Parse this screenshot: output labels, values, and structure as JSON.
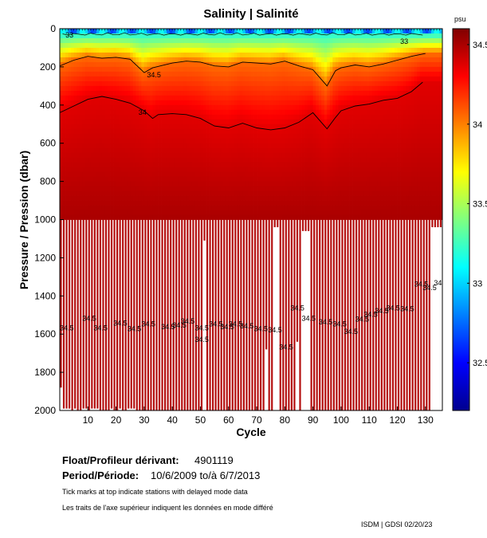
{
  "chart_data": {
    "type": "heatmap",
    "title": "Salinity | Salinité",
    "xlabel": "Cycle",
    "ylabel": "Pressure / Pression (dbar)",
    "xlim": [
      0,
      136
    ],
    "ylim": [
      2000,
      0
    ],
    "x_ticks": [
      10,
      20,
      30,
      40,
      50,
      60,
      70,
      80,
      90,
      100,
      110,
      120,
      130
    ],
    "y_ticks": [
      0,
      200,
      400,
      600,
      800,
      1000,
      1200,
      1400,
      1600,
      1800,
      2000
    ],
    "colorbar": {
      "unit": "psu",
      "range": [
        32.2,
        34.6
      ],
      "ticks": [
        32.5,
        33,
        33.5,
        34,
        34.5
      ],
      "tick_labels": [
        "32.5",
        "33",
        "33.5",
        "34",
        "34.5"
      ],
      "colormap": "jet"
    },
    "contour_labels": {
      "upper_left": "33",
      "upper_right": "33",
      "mid": "34.5",
      "deep": "34",
      "repeated": "34.5"
    },
    "contours": [
      {
        "level": 34.5,
        "depth_by_cycle": [
          [
            0,
            195
          ],
          [
            5,
            165
          ],
          [
            10,
            145
          ],
          [
            15,
            155
          ],
          [
            20,
            150
          ],
          [
            25,
            160
          ],
          [
            30,
            230
          ],
          [
            33,
            205
          ],
          [
            40,
            180
          ],
          [
            45,
            170
          ],
          [
            50,
            175
          ],
          [
            55,
            195
          ],
          [
            60,
            200
          ],
          [
            65,
            175
          ],
          [
            70,
            180
          ],
          [
            75,
            185
          ],
          [
            80,
            170
          ],
          [
            85,
            195
          ],
          [
            90,
            215
          ],
          [
            95,
            300
          ],
          [
            98,
            220
          ],
          [
            100,
            205
          ],
          [
            105,
            190
          ],
          [
            110,
            200
          ],
          [
            115,
            185
          ],
          [
            120,
            165
          ],
          [
            125,
            145
          ],
          [
            130,
            130
          ]
        ]
      },
      {
        "level": 34.0,
        "depth_by_cycle": [
          [
            0,
            440
          ],
          [
            5,
            405
          ],
          [
            10,
            370
          ],
          [
            15,
            355
          ],
          [
            20,
            370
          ],
          [
            25,
            390
          ],
          [
            30,
            430
          ],
          [
            33,
            470
          ],
          [
            35,
            450
          ],
          [
            40,
            445
          ],
          [
            45,
            450
          ],
          [
            50,
            470
          ],
          [
            55,
            510
          ],
          [
            60,
            520
          ],
          [
            65,
            495
          ],
          [
            70,
            520
          ],
          [
            75,
            530
          ],
          [
            80,
            520
          ],
          [
            85,
            490
          ],
          [
            90,
            440
          ],
          [
            95,
            525
          ],
          [
            98,
            465
          ],
          [
            100,
            430
          ],
          [
            105,
            405
          ],
          [
            110,
            395
          ],
          [
            115,
            375
          ],
          [
            120,
            365
          ],
          [
            125,
            330
          ],
          [
            129,
            280
          ]
        ]
      }
    ],
    "deep_profile_depths": [
      1880,
      1990,
      1990,
      1990,
      2000,
      1990,
      2000,
      2000,
      1990,
      1990,
      2000,
      1990,
      1990,
      1990,
      2000,
      2000,
      2000,
      2000,
      1990,
      2000,
      2000,
      1990,
      2000,
      2000,
      1990,
      1990,
      1990,
      2000,
      2000,
      2000,
      2000,
      2000,
      2000,
      2000,
      2000,
      2000,
      2000,
      2000,
      2000,
      2000,
      2000,
      2000,
      2000,
      2000,
      2000,
      2000,
      2000,
      2000,
      2000,
      2000,
      2000,
      1110,
      2000,
      2000,
      2000,
      2000,
      2000,
      2000,
      2000,
      2000,
      2000,
      2000,
      2000,
      2000,
      2000,
      2000,
      2000,
      2000,
      2000,
      2000,
      2000,
      2000,
      2000,
      1680,
      2000,
      2000,
      1040,
      1040,
      2000,
      2000,
      2000,
      2000,
      2000,
      2000,
      1640,
      2000,
      1060,
      1060,
      1060,
      2000,
      2000,
      2000,
      2000,
      2000,
      2000,
      2000,
      2000,
      2000,
      2000,
      2000,
      2000,
      2000,
      2000,
      2000,
      2000,
      2000,
      2000,
      2000,
      2000,
      2000,
      2000,
      2000,
      2000,
      2000,
      2000,
      2000,
      2000,
      2000,
      2000,
      2000,
      2000,
      2000,
      2000,
      2000,
      2000,
      2000,
      2000,
      2000,
      2000,
      2000,
      2000,
      2000,
      1040,
      1040,
      1040,
      1040
    ]
  },
  "float": {
    "label": "Float/Profileur dérivant:",
    "value": "4901119"
  },
  "period": {
    "label": "Period/Période:",
    "value": "10/6/2009  to/à  6/7/2013"
  },
  "note_en": "Tick marks at top indicate stations with delayed mode data",
  "note_fr": "Les traits de l'axe supérieur indiquent les données en mode différé",
  "credit": "ISDM | GDSI  02/20/23"
}
